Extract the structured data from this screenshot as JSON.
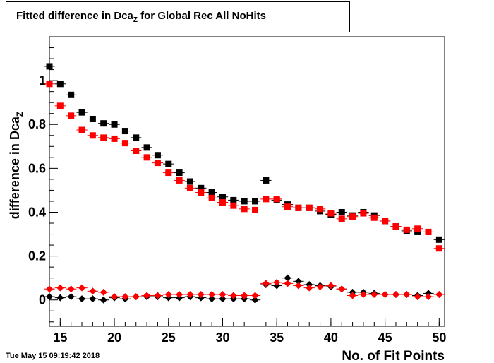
{
  "title": {
    "main": "Fitted difference in Dca",
    "sub": "Z",
    "rest": " for Global Rec All NoHits"
  },
  "timestamp": "Tue May 15 09:19:42 2018",
  "chart_data": {
    "type": "scatter",
    "xlabel": "No. of Fit Points",
    "ylabel": "difference in Dca",
    "ylabel_sub": "Z",
    "xlim": [
      14,
      50.5
    ],
    "ylim": [
      -0.12,
      1.2
    ],
    "xticks": [
      15,
      20,
      25,
      30,
      35,
      40,
      45,
      50
    ],
    "yticks": [
      0,
      0.2,
      0.4,
      0.6,
      0.8,
      1
    ],
    "ytick_labels": [
      "0",
      "0.2",
      "0.4",
      "0.6",
      "0.8",
      "1"
    ],
    "grid": false,
    "x": [
      14,
      15,
      16,
      17,
      18,
      19,
      20,
      21,
      22,
      23,
      24,
      25,
      26,
      27,
      28,
      29,
      30,
      31,
      32,
      33,
      34,
      35,
      36,
      37,
      38,
      39,
      40,
      41,
      42,
      43,
      44,
      45,
      46,
      47,
      48,
      49,
      50
    ],
    "series": [
      {
        "marker": "square",
        "color": "#000000",
        "values": [
          1.065,
          0.985,
          0.935,
          0.855,
          0.825,
          0.805,
          0.8,
          0.77,
          0.74,
          0.695,
          0.66,
          0.62,
          0.58,
          0.54,
          0.51,
          0.49,
          0.47,
          0.455,
          0.45,
          0.45,
          0.545,
          0.455,
          0.435,
          0.42,
          0.42,
          0.405,
          0.39,
          0.4,
          0.385,
          0.4,
          0.385,
          0.36,
          0.335,
          0.315,
          0.31,
          0.31,
          0.275
        ]
      },
      {
        "marker": "square",
        "color": "#ff0000",
        "values": [
          0.985,
          0.885,
          0.84,
          0.775,
          0.75,
          0.74,
          0.735,
          0.715,
          0.68,
          0.65,
          0.625,
          0.58,
          0.545,
          0.51,
          0.49,
          0.465,
          0.445,
          0.43,
          0.415,
          0.41,
          0.46,
          0.46,
          0.425,
          0.42,
          0.42,
          0.415,
          0.395,
          0.37,
          0.38,
          0.395,
          0.375,
          0.36,
          0.335,
          0.32,
          0.325,
          0.31,
          0.235
        ]
      },
      {
        "marker": "diamond",
        "color": "#000000",
        "values": [
          0.015,
          0.01,
          0.015,
          0.005,
          0.005,
          0.0,
          0.01,
          0.005,
          0.015,
          0.015,
          0.015,
          0.01,
          0.01,
          0.015,
          0.01,
          0.005,
          0.005,
          0.005,
          0.005,
          0.0,
          0.07,
          0.065,
          0.1,
          0.085,
          0.07,
          0.065,
          0.06,
          0.05,
          0.035,
          0.035,
          0.03,
          0.025,
          0.025,
          0.025,
          0.02,
          0.03,
          0.025
        ]
      },
      {
        "marker": "diamond",
        "color": "#ff0000",
        "values": [
          0.05,
          0.055,
          0.05,
          0.055,
          0.04,
          0.035,
          0.015,
          0.015,
          0.015,
          0.02,
          0.02,
          0.025,
          0.025,
          0.025,
          0.025,
          0.025,
          0.025,
          0.02,
          0.02,
          0.02,
          0.075,
          0.08,
          0.075,
          0.065,
          0.055,
          0.06,
          0.065,
          0.05,
          0.02,
          0.025,
          0.025,
          0.025,
          0.025,
          0.025,
          0.015,
          0.015,
          0.025
        ]
      }
    ]
  }
}
